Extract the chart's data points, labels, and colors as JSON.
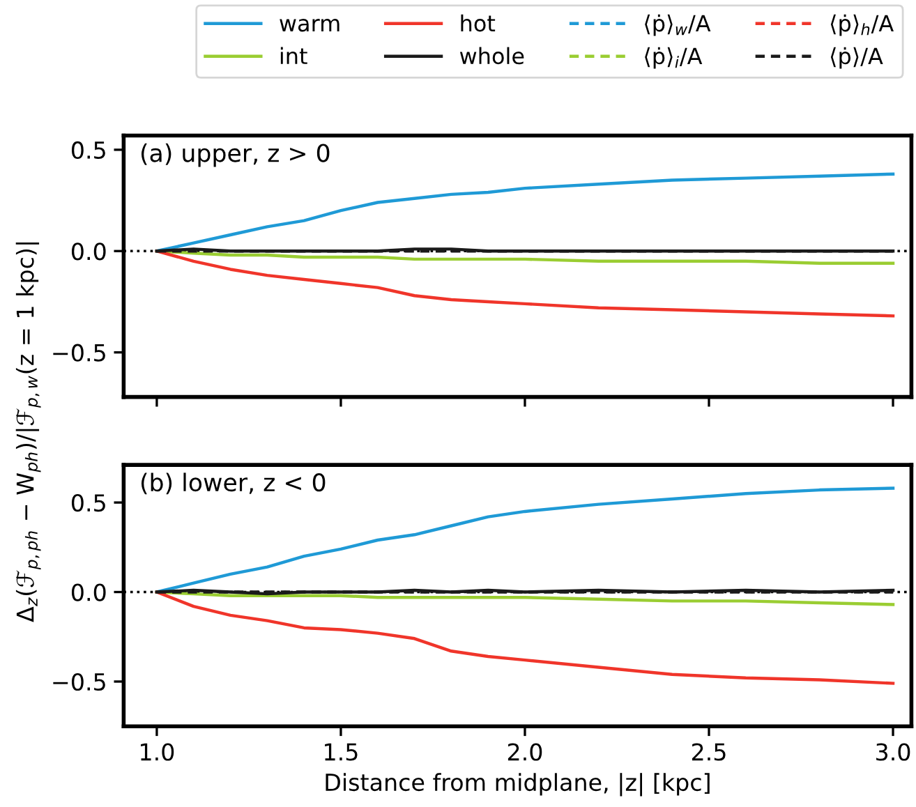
{
  "chart_data": [
    {
      "type": "line",
      "title": "(a) upper, z > 0",
      "x": [
        1.0,
        1.1,
        1.2,
        1.3,
        1.4,
        1.5,
        1.6,
        1.7,
        1.8,
        1.9,
        2.0,
        2.2,
        2.4,
        2.6,
        2.8,
        3.0
      ],
      "xlim": [
        0.91,
        3.05
      ],
      "xticks": [
        {
          "value": 1.0,
          "label": null
        },
        {
          "value": 1.5,
          "label": null
        },
        {
          "value": 2.0,
          "label": null
        },
        {
          "value": 2.5,
          "label": null
        },
        {
          "value": 3.0,
          "label": null
        }
      ],
      "ylim": [
        -0.72,
        0.57
      ],
      "yticks": [
        {
          "value": -0.5,
          "label": "−0.5"
        },
        {
          "value": 0,
          "label": "0.0"
        },
        {
          "value": 0.5,
          "label": "0.5"
        }
      ],
      "tick_labels": "y",
      "legend": "top",
      "grid": false,
      "ref_lines": [
        {
          "axis": "y",
          "value": 0,
          "color": "#000000",
          "line_style": "dotted"
        }
      ],
      "series": [
        {
          "name": "warm",
          "color": "#1f9ad6",
          "line_style": "solid",
          "values": [
            0,
            0.04,
            0.08,
            0.12,
            0.15,
            0.2,
            0.24,
            0.26,
            0.28,
            0.29,
            0.31,
            0.33,
            0.35,
            0.36,
            0.37,
            0.38
          ]
        },
        {
          "name": "int",
          "color": "#9acd32",
          "line_style": "solid",
          "values": [
            0,
            -0.01,
            -0.02,
            -0.02,
            -0.03,
            -0.03,
            -0.03,
            -0.04,
            -0.04,
            -0.04,
            -0.04,
            -0.05,
            -0.05,
            -0.05,
            -0.06,
            -0.06
          ]
        },
        {
          "name": "hot",
          "color": "#f0352a",
          "line_style": "solid",
          "values": [
            0,
            -0.05,
            -0.09,
            -0.12,
            -0.14,
            -0.16,
            -0.18,
            -0.22,
            -0.24,
            -0.25,
            -0.26,
            -0.28,
            -0.29,
            -0.3,
            -0.31,
            -0.32
          ]
        },
        {
          "name": "whole",
          "color": "#1a1a1a",
          "line_style": "solid",
          "values": [
            0,
            0.01,
            0,
            0,
            0,
            0,
            0,
            0.01,
            0.01,
            0,
            0,
            0,
            0,
            0,
            0,
            0
          ]
        },
        {
          "name": "⟨ṗ⟩$_{w}$/A",
          "color": "#1f9ad6",
          "line_style": "dashed",
          "values": [
            null,
            null,
            null,
            null,
            null,
            null,
            null,
            null,
            null,
            null,
            null,
            null,
            null,
            null,
            null,
            null
          ]
        },
        {
          "name": "⟨ṗ⟩$_{i}$/A",
          "color": "#9acd32",
          "line_style": "dashed",
          "values": [
            null,
            null,
            null,
            null,
            null,
            null,
            null,
            null,
            null,
            null,
            null,
            null,
            null,
            null,
            null,
            null
          ]
        },
        {
          "name": "⟨ṗ⟩$_{h}$/A",
          "color": "#f0352a",
          "line_style": "dashed",
          "values": [
            null,
            null,
            null,
            null,
            null,
            null,
            null,
            null,
            null,
            null,
            null,
            null,
            null,
            null,
            null,
            null
          ]
        },
        {
          "name": "⟨ṗ⟩/A",
          "color": "#1a1a1a",
          "line_style": "dashed",
          "values": [
            0,
            0,
            0,
            0,
            0,
            0,
            0,
            0,
            0,
            0,
            0,
            0,
            0,
            0,
            0,
            0
          ]
        }
      ]
    },
    {
      "type": "line",
      "title": "(b) lower, z < 0",
      "xlabel": "Distance from midplane, |z| [kpc]",
      "ylabel": "Δ$_{z}$(ℱ$_{p,ph}$ − W$_{ph}$)/|ℱ$_{p,w}$(z = 1 kpc)|",
      "x": [
        1.0,
        1.1,
        1.2,
        1.3,
        1.4,
        1.5,
        1.6,
        1.7,
        1.8,
        1.9,
        2.0,
        2.2,
        2.4,
        2.6,
        2.8,
        3.0
      ],
      "xlim": [
        0.91,
        3.05
      ],
      "xticks": [
        {
          "value": 1.0,
          "label": "1.0"
        },
        {
          "value": 1.5,
          "label": "1.5"
        },
        {
          "value": 2.0,
          "label": "2.0"
        },
        {
          "value": 2.5,
          "label": "2.5"
        },
        {
          "value": 3.0,
          "label": "3.0"
        }
      ],
      "ylim": [
        -0.75,
        0.71
      ],
      "yticks": [
        {
          "value": -0.5,
          "label": "−0.5"
        },
        {
          "value": 0,
          "label": "0.0"
        },
        {
          "value": 0.5,
          "label": "0.5"
        }
      ],
      "grid": false,
      "ref_lines": [
        {
          "axis": "y",
          "value": 0,
          "color": "#000000",
          "line_style": "dotted"
        }
      ],
      "series": [
        {
          "color": "#1f9ad6",
          "line_style": "solid",
          "values": [
            0,
            0.05,
            0.1,
            0.14,
            0.2,
            0.24,
            0.29,
            0.32,
            0.37,
            0.42,
            0.45,
            0.49,
            0.52,
            0.55,
            0.57,
            0.58
          ]
        },
        {
          "color": "#9acd32",
          "line_style": "solid",
          "values": [
            0,
            -0.01,
            -0.02,
            -0.02,
            -0.02,
            -0.02,
            -0.03,
            -0.03,
            -0.03,
            -0.03,
            -0.03,
            -0.04,
            -0.05,
            -0.05,
            -0.06,
            -0.07
          ]
        },
        {
          "color": "#f0352a",
          "line_style": "solid",
          "values": [
            0,
            -0.08,
            -0.13,
            -0.16,
            -0.2,
            -0.21,
            -0.23,
            -0.26,
            -0.33,
            -0.36,
            -0.38,
            -0.42,
            -0.46,
            -0.48,
            -0.49,
            -0.51
          ]
        },
        {
          "color": "#1a1a1a",
          "line_style": "solid",
          "values": [
            0,
            0.01,
            0,
            -0.01,
            0,
            0,
            0,
            0.01,
            0,
            0.01,
            0,
            0.01,
            0,
            0.01,
            0,
            0.01
          ]
        },
        {
          "color": "#1a1a1a",
          "line_style": "dashed",
          "values": [
            0,
            0,
            0,
            0,
            0,
            0,
            0,
            0,
            0,
            0,
            0,
            0,
            0,
            0,
            0,
            0
          ]
        }
      ]
    }
  ]
}
